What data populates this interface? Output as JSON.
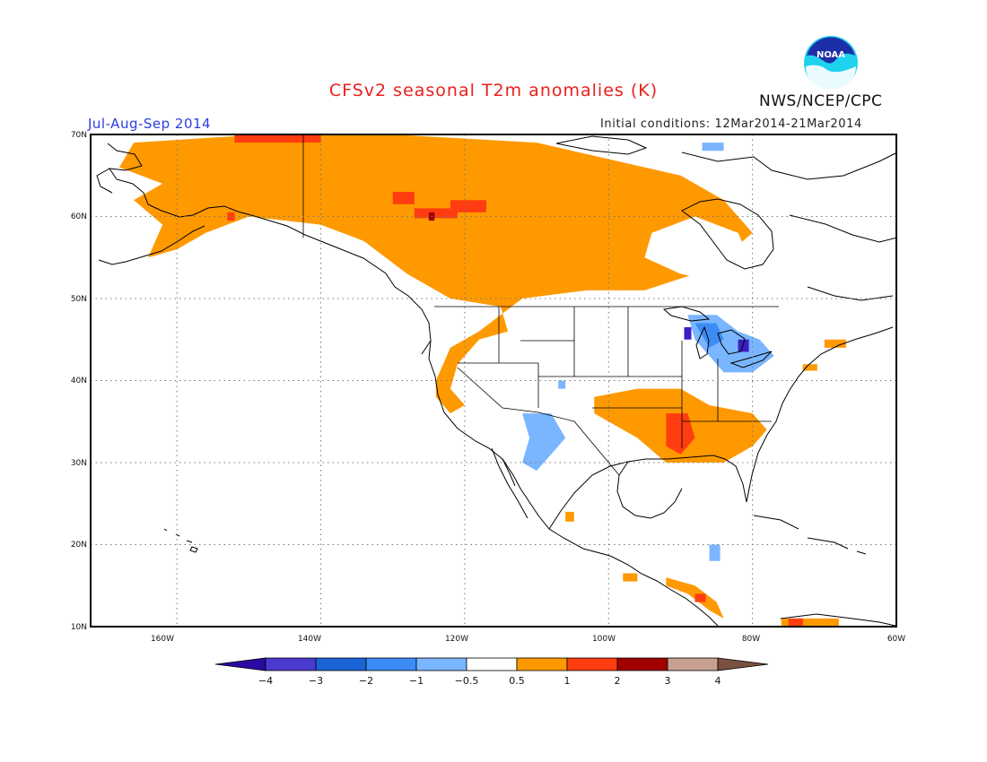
{
  "header": {
    "title": "CFSv2 seasonal T2m anomalies (K)",
    "organization": "NWS/NCEP/CPC",
    "season": "Jul-Aug-Sep 2014",
    "initial_conditions": "Initial conditions: 12Mar2014-21Mar2014",
    "logo_text": "NOAA"
  },
  "map": {
    "lon_range": [
      -172,
      -60
    ],
    "lat_range": [
      10,
      70
    ],
    "lat_labels": [
      "70N",
      "60N",
      "50N",
      "40N",
      "30N",
      "20N",
      "10N"
    ],
    "lon_labels": [
      "160W",
      "140W",
      "120W",
      "100W",
      "80W",
      "60W"
    ],
    "colors": {
      "warm_0.5_1": "#ff9900",
      "warm_1_2": "#ff3d10",
      "warm_2_3": "#a00000",
      "cool_neg0.5_neg1": "#7ab5ff",
      "cool_neg1_neg2": "#3d8cf5",
      "cool_neg3_neg4": "#3a1ec2"
    }
  },
  "legend": {
    "labels": [
      "−4",
      "−3",
      "−2",
      "−1",
      "−0.5",
      "0.5",
      "1",
      "2",
      "3",
      "4"
    ],
    "colors": [
      "#2a0aa0",
      "#4a3ad0",
      "#1a64d6",
      "#3d8cf5",
      "#7ab5ff",
      "#ffffff",
      "#ff9900",
      "#ff3d10",
      "#a00000",
      "#c8a090",
      "#7a5040"
    ]
  }
}
